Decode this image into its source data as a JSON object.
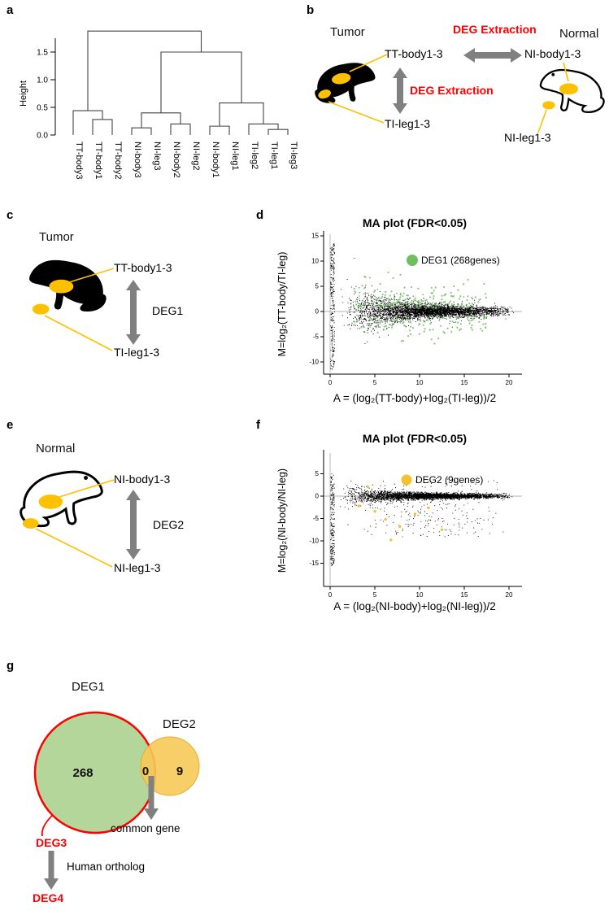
{
  "colors": {
    "red": "#ff0000",
    "arrow_gray": "#808080",
    "gold": "#ffc000",
    "deg1_green": "#6fbf5f",
    "deg2_yellow": "#f2c233",
    "venn_green_fill": "#b5d69b",
    "venn_yellow_fill": "#f6c957"
  },
  "panels": {
    "a": {
      "label": "a"
    },
    "b": {
      "label": "b",
      "tumor": "Tumor",
      "normal": "Normal",
      "deg_extraction": "DEG Extraction",
      "tt_body": "TT-body1-3",
      "ti_leg": "TI-leg1-3",
      "ni_body": "NI-body1-3",
      "ni_leg": "NI-leg1-3"
    },
    "c": {
      "label": "c",
      "tumor": "Tumor",
      "tt_body": "TT-body1-3",
      "ti_leg": "TI-leg1-3",
      "deg": "DEG1"
    },
    "d": {
      "label": "d"
    },
    "e": {
      "label": "e",
      "normal": "Normal",
      "ni_body": "NI-body1-3",
      "ni_leg": "NI-leg1-3",
      "deg": "DEG2"
    },
    "f": {
      "label": "f"
    },
    "g": {
      "label": "g",
      "deg1": "DEG1",
      "deg2": "DEG2",
      "count_deg1": "268",
      "count_overlap": "0",
      "count_deg2": "9",
      "common_gene": "common gene",
      "deg3": "DEG3",
      "human_ortholog": "Human ortholog",
      "deg4": "DEG4"
    }
  },
  "chart_data": [
    {
      "id": "dendro",
      "type": "dendrogram",
      "ylabel": "Height",
      "yticks": [
        0,
        0.5,
        1,
        1.5
      ],
      "leaves": [
        "TT-body3",
        "TT-body1",
        "TT-body2",
        "NI-body3",
        "NI-leg3",
        "NI-body2",
        "NI-leg2",
        "NI-body1",
        "NI-leg1",
        "TI-leg2",
        "TI-leg1",
        "TI-leg3"
      ],
      "tree": {
        "h": 1.88,
        "c": [
          {
            "h": 0.44,
            "c": [
              {
                "leaf": 0
              },
              {
                "h": 0.28,
                "c": [
                  {
                    "leaf": 1
                  },
                  {
                    "leaf": 2
                  }
                ]
              }
            ]
          },
          {
            "h": 1.5,
            "c": [
              {
                "h": 0.4,
                "c": [
                  {
                    "h": 0.13,
                    "c": [
                      {
                        "leaf": 3
                      },
                      {
                        "leaf": 4
                      }
                    ]
                  },
                  {
                    "h": 0.2,
                    "c": [
                      {
                        "leaf": 5
                      },
                      {
                        "leaf": 6
                      }
                    ]
                  }
                ]
              },
              {
                "h": 0.58,
                "c": [
                  {
                    "h": 0.16,
                    "c": [
                      {
                        "leaf": 7
                      },
                      {
                        "leaf": 8
                      }
                    ]
                  },
                  {
                    "h": 0.2,
                    "c": [
                      {
                        "leaf": 9
                      },
                      {
                        "h": 0.1,
                        "c": [
                          {
                            "leaf": 10
                          },
                          {
                            "leaf": 11
                          }
                        ]
                      }
                    ]
                  }
                ]
              }
            ]
          }
        ]
      }
    },
    {
      "id": "ma-d",
      "type": "scatter",
      "title": "MA plot (FDR<0.05)",
      "xlabel": "A = (log₂(TT-body)+log₂(TI-leg))/2",
      "ylabel": "M=log₂(TT-body/TI-leg)",
      "xticks": [
        0,
        5,
        10,
        15,
        20
      ],
      "yticks": [
        15,
        10,
        5,
        0,
        -5,
        -10
      ],
      "xlim": [
        0,
        21
      ],
      "ylim": [
        -12,
        16
      ],
      "legend": {
        "label": "DEG1 (268genes)",
        "color": "#6fbf5f"
      },
      "cloud": {
        "seed": 13,
        "n": 3800,
        "a_base": 1,
        "a_span": 19.6,
        "sd_min": 0.45,
        "sd_amp": 3.3,
        "sd_tau": 4.2,
        "tail_p": 0.05,
        "tail_mult": 2.5,
        "clamp": [
          -11.8,
          13.8
        ]
      },
      "stripe": {
        "n": 240,
        "a": [
          0.05,
          0.5
        ],
        "m": [
          -11.5,
          13.5
        ]
      },
      "deg": {
        "seed": 29,
        "n": 268,
        "color": "#6fbf5f",
        "a": [
          2.5,
          17.5
        ],
        "pos_frac": 0.6,
        "mag_base": 0.7,
        "mag_sd": 2.2,
        "mag_max": 8
      }
    },
    {
      "id": "ma-f",
      "type": "scatter",
      "title": "MA plot (FDR<0.05)",
      "xlabel": "A = (log₂(NI-body)+log₂(NI-leg))/2",
      "ylabel": "M=log₂(NI-body/NI-leg)",
      "xticks": [
        0,
        5,
        10,
        15,
        20
      ],
      "yticks": [
        5,
        0,
        -5,
        -10,
        -15
      ],
      "xlim": [
        0,
        21
      ],
      "ylim": [
        -16,
        6
      ],
      "legend": {
        "label": "DEG2 (9genes)",
        "color": "#f2c233"
      },
      "cloud": {
        "seed": 41,
        "n": 3800,
        "a_base": 1,
        "a_span": 19.6,
        "sd_min": 0.28,
        "sd_amp": 2.0,
        "sd_tau": 3.2,
        "neg_p": 0.045,
        "neg_max": 8,
        "pos_p": 0.012,
        "pos_max": 3,
        "clamp": [
          -15.8,
          6.0
        ]
      },
      "stripe": {
        "n": 210,
        "a": [
          0.05,
          0.5
        ],
        "m": [
          -15.5,
          5.0
        ]
      },
      "deg_points": [
        [
          3.2,
          -2.2
        ],
        [
          5.0,
          -3.4
        ],
        [
          6.2,
          -5.2
        ],
        [
          7.8,
          -6.8
        ],
        [
          9.5,
          -4.0
        ],
        [
          11.0,
          -2.6
        ],
        [
          6.8,
          -9.8
        ],
        [
          4.2,
          2.1
        ],
        [
          12.5,
          -7.5
        ]
      ]
    },
    {
      "id": "venn",
      "type": "venn",
      "sets": [
        {
          "label": "DEG1",
          "size": 268
        },
        {
          "label": "DEG2",
          "size": 9
        }
      ],
      "intersection": 0,
      "annotations": [
        "common gene",
        "DEG3",
        "Human ortholog",
        "DEG4"
      ]
    }
  ]
}
